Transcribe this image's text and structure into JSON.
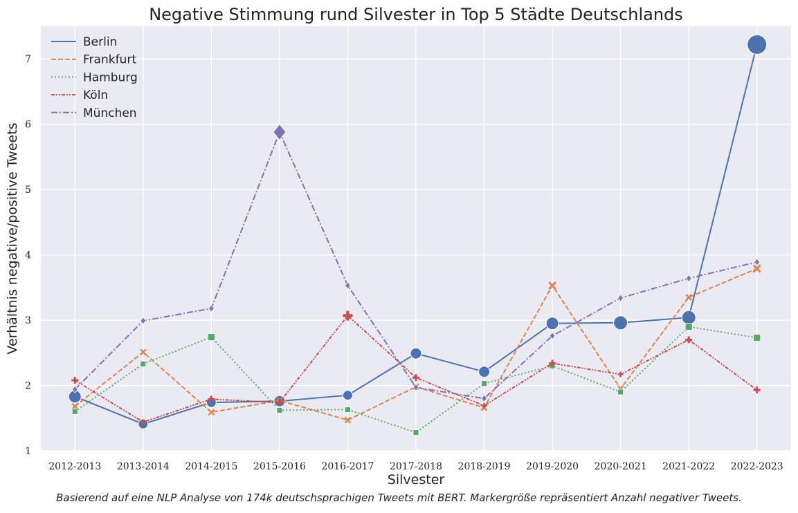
{
  "chart_data": {
    "type": "line",
    "title": "Negative Stimmung rund Silvester in Top 5 Städte Deutschlands",
    "xlabel": "Silvester",
    "ylabel": "Verhältnis negative/positive Tweets",
    "categories": [
      "2012-2013",
      "2013-2014",
      "2014-2015",
      "2015-2016",
      "2016-2017",
      "2017-2018",
      "2018-2019",
      "2019-2020",
      "2020-2021",
      "2021-2022",
      "2022-2023"
    ],
    "ylim": [
      1,
      7.5
    ],
    "yticks": [
      1,
      2,
      3,
      4,
      5,
      6,
      7
    ],
    "grid": true,
    "legend_position": "top-left",
    "background": "#eaeaf2",
    "series": [
      {
        "name": "Berlin",
        "color": "#4c72b0",
        "dash": "solid",
        "marker": "circle",
        "values": [
          1.83,
          1.41,
          1.74,
          1.76,
          1.85,
          2.49,
          2.21,
          2.95,
          2.96,
          3.04,
          7.22
        ],
        "marker_sizes": [
          9,
          7,
          7,
          8,
          7,
          8,
          8,
          9,
          10,
          10,
          14
        ]
      },
      {
        "name": "Frankfurt",
        "color": "#dd8452",
        "dash": "dashed",
        "marker": "x",
        "values": [
          1.68,
          2.51,
          1.59,
          1.77,
          1.47,
          1.98,
          1.66,
          3.53,
          1.95,
          3.35,
          3.79
        ],
        "marker_sizes": [
          4,
          4,
          4,
          4,
          4,
          4,
          4,
          5,
          4,
          4,
          5
        ]
      },
      {
        "name": "Hamburg",
        "color": "#55a868",
        "dash": "dotted",
        "marker": "square",
        "values": [
          1.6,
          2.33,
          2.74,
          1.62,
          1.63,
          1.28,
          2.03,
          2.3,
          1.9,
          2.9,
          2.73
        ],
        "marker_sizes": [
          4,
          4,
          5,
          4,
          4,
          4,
          4,
          4,
          4,
          5,
          5
        ]
      },
      {
        "name": "Köln",
        "color": "#c44e52",
        "dash": "dash-dot-dot",
        "marker": "plus",
        "values": [
          2.08,
          1.44,
          1.79,
          1.74,
          3.07,
          2.12,
          1.69,
          2.34,
          2.17,
          2.7,
          1.93
        ],
        "marker_sizes": [
          5,
          4,
          5,
          5,
          7,
          5,
          4,
          5,
          4,
          5,
          5
        ]
      },
      {
        "name": "München",
        "color": "#8172b3",
        "dash": "dash-dot",
        "marker": "diamond",
        "values": [
          1.94,
          2.99,
          3.18,
          5.88,
          3.53,
          1.97,
          1.8,
          2.76,
          3.34,
          3.64,
          3.89
        ],
        "marker_sizes": [
          4,
          4,
          4,
          9,
          4,
          4,
          4,
          4,
          4,
          4,
          4
        ]
      }
    ],
    "caption": "Basierend auf eine NLP Analyse von 174k deutschsprachigen Tweets mit BERT. Markergröße repräsentiert Anzahl negativer Tweets."
  }
}
